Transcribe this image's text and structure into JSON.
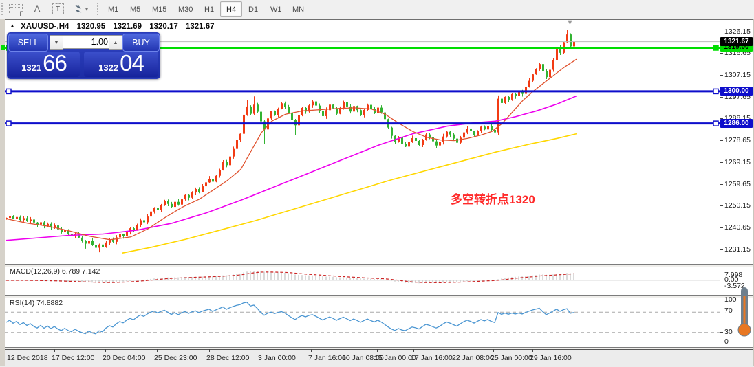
{
  "toolbar": {
    "icons": [
      {
        "name": "grid-f-icon",
        "glyph": "F"
      },
      {
        "name": "text-a-icon",
        "glyph": "A"
      },
      {
        "name": "text-box-icon",
        "glyph": "T"
      },
      {
        "name": "arrows-dropdown-icon",
        "glyph": "▾"
      }
    ],
    "timeframes": [
      "M1",
      "M5",
      "M15",
      "M30",
      "H1",
      "H4",
      "D1",
      "W1",
      "MN"
    ],
    "active_timeframe": "H4"
  },
  "chart": {
    "collapse_marker": "▲",
    "shift_marker": "▼",
    "symbol_title": "XAUUSD-,H4",
    "ohlc": {
      "open": "1320.95",
      "high": "1321.69",
      "low": "1320.17",
      "close": "1321.67"
    },
    "trade_panel": {
      "sell_label": "SELL",
      "buy_label": "BUY",
      "volume": "1.00",
      "down_glyph": "▼",
      "up_glyph": "▲",
      "sell_price_small": "1321",
      "sell_price_big": "66",
      "buy_price_small": "1322",
      "buy_price_big": "04"
    },
    "annotation": {
      "text": "多空转折点1320",
      "color": "#ff2a2a"
    },
    "current_price": {
      "value": "1321.67",
      "badge_bg": "#000000",
      "line_color": "#bcbcbc"
    },
    "hlines": [
      {
        "price": 1319.0,
        "label": "1319.00",
        "color": "#00dd00",
        "text_color": "#000000"
      },
      {
        "price": 1300.0,
        "label": "1300.00",
        "color": "#0e0ecb",
        "text_color": "#ffffff"
      },
      {
        "price": 1286.0,
        "label": "1286.00",
        "color": "#0e0ecb",
        "text_color": "#ffffff"
      }
    ],
    "price_ticks": [
      "1326.15",
      "1316.65",
      "1307.15",
      "1297.65",
      "1288.15",
      "1278.65",
      "1269.15",
      "1259.65",
      "1250.15",
      "1240.65",
      "1231.15"
    ],
    "time_labels": [
      "12 Dec 2018",
      "17 Dec 12:00",
      "20 Dec 04:00",
      "25 Dec 23:00",
      "28 Dec 12:00",
      "3 Jan 00:00",
      "7 Jan 16:00",
      "10 Jan 08:00",
      "15 Jan 00:00",
      "17 Jan 16:00",
      "22 Jan 08:00",
      "25 Jan 00:00",
      "29 Jan 16:00"
    ]
  },
  "macd_pane": {
    "label": "MACD(12,26,9) 6.789 7.142",
    "ticks": [
      "7.998",
      "0.00",
      "-3.572"
    ]
  },
  "rsi_pane": {
    "label": "RSI(14) 74.8882",
    "ticks": [
      "100",
      "70",
      "30",
      "0"
    ]
  },
  "chart_data": {
    "type": "candlestick",
    "symbol": "XAUUSD",
    "timeframe": "H4",
    "price_axis_range": [
      1231.15,
      1326.15
    ],
    "colors": {
      "bull": "#f23b14",
      "bear": "#32b332",
      "ma_fast": "#e0532f",
      "ma_mid": "#ee00ee",
      "ma_slow": "#ffd700",
      "macd_bar": "#c2c2c2",
      "macd_signal": "#cc2222",
      "rsi_line": "#4b96d2"
    },
    "closes": [
      1244.8,
      1245.6,
      1244.5,
      1245.2,
      1243.9,
      1244.7,
      1243.4,
      1244.1,
      1242.8,
      1241.9,
      1242.9,
      1241.3,
      1242.2,
      1240.6,
      1241.5,
      1239.8,
      1238.6,
      1239.6,
      1237.9,
      1236.8,
      1237.9,
      1236.2,
      1234.9,
      1233.6,
      1234.8,
      1232.9,
      1231.8,
      1233.2,
      1232.2,
      1234.1,
      1235.4,
      1234.4,
      1236.3,
      1237.8,
      1236.9,
      1238.8,
      1240.3,
      1239.4,
      1241.6,
      1243.8,
      1242.9,
      1245.4,
      1247.6,
      1249.3,
      1248.2,
      1250.4,
      1252.1,
      1250.9,
      1249.6,
      1251.8,
      1250.6,
      1252.9,
      1254.8,
      1253.6,
      1255.9,
      1257.4,
      1256.2,
      1258.6,
      1260.3,
      1261.9,
      1260.6,
      1263.2,
      1265.8,
      1269.4,
      1267.8,
      1271.6,
      1274.9,
      1278.8,
      1281.5,
      1289.8,
      1293.4,
      1290.2,
      1294.2,
      1291.1,
      1286.9,
      1283.4,
      1288.2,
      1291.3,
      1289.5,
      1292.4,
      1294.8,
      1293.2,
      1290.4,
      1287.6,
      1285.2,
      1289.6,
      1292.8,
      1291.2,
      1293.9,
      1295.6,
      1293.8,
      1291.6,
      1289.2,
      1291.8,
      1294.2,
      1292.6,
      1290.2,
      1292.8,
      1295.2,
      1293.4,
      1291.2,
      1293.6,
      1291.8,
      1289.6,
      1291.9,
      1294.1,
      1292.3,
      1290.6,
      1292.9,
      1290.8,
      1287.9,
      1284.2,
      1280.6,
      1277.8,
      1279.9,
      1277.2,
      1275.9,
      1277.8,
      1279.6,
      1278.4,
      1276.6,
      1278.9,
      1281.2,
      1280.1,
      1278.2,
      1276.4,
      1277.9,
      1280.3,
      1282.4,
      1281.2,
      1279.4,
      1277.6,
      1279.8,
      1282.1,
      1283.8,
      1282.6,
      1280.9,
      1282.8,
      1284.6,
      1283.4,
      1284.9,
      1283.2,
      1282.1,
      1296.8,
      1294.9,
      1297.6,
      1296.4,
      1298.8,
      1297.9,
      1299.8,
      1298.9,
      1301.8,
      1304.6,
      1307.4,
      1309.8,
      1311.9,
      1308.9,
      1306.2,
      1309.4,
      1313.6,
      1318.9,
      1316.8,
      1321.4,
      1324.8,
      1319.6,
      1321.67
    ],
    "first_open": 1244.2,
    "wick_overrides": {
      "23": [
        0.3,
        2.2
      ],
      "26": [
        0.3,
        2.6
      ],
      "27": [
        0.4,
        2.0
      ],
      "69": [
        7.2,
        0.4
      ],
      "70": [
        2.8,
        0.5
      ],
      "72": [
        3.6,
        0.5
      ],
      "74": [
        0.4,
        4.0
      ],
      "75": [
        0.6,
        6.2
      ],
      "84": [
        0.4,
        4.2
      ],
      "143": [
        1.4,
        1.2
      ],
      "156": [
        0.5,
        3.0
      ],
      "163": [
        1.9,
        0.4
      ],
      "165": [
        0.8,
        0.6
      ]
    },
    "ma_fast_points": [
      [
        8,
        1244.5
      ],
      [
        40,
        1242.5
      ],
      [
        70,
        1241.2
      ],
      [
        100,
        1239.2
      ],
      [
        130,
        1236.8
      ],
      [
        160,
        1235.3
      ],
      [
        190,
        1236.5
      ],
      [
        215,
        1240
      ],
      [
        240,
        1245
      ],
      [
        265,
        1249.5
      ],
      [
        290,
        1253
      ],
      [
        310,
        1257
      ],
      [
        330,
        1261
      ],
      [
        350,
        1266
      ],
      [
        365,
        1274
      ],
      [
        380,
        1282
      ],
      [
        395,
        1287
      ],
      [
        415,
        1290
      ],
      [
        440,
        1291.5
      ],
      [
        465,
        1292
      ],
      [
        490,
        1292.5
      ],
      [
        515,
        1292.8
      ],
      [
        540,
        1292.3
      ],
      [
        560,
        1290
      ],
      [
        580,
        1286
      ],
      [
        600,
        1282.5
      ],
      [
        620,
        1280
      ],
      [
        640,
        1278.8
      ],
      [
        660,
        1278.5
      ],
      [
        680,
        1279.5
      ],
      [
        700,
        1281
      ],
      [
        715,
        1282.5
      ],
      [
        730,
        1286
      ],
      [
        745,
        1291
      ],
      [
        760,
        1296
      ],
      [
        775,
        1300
      ],
      [
        790,
        1303.5
      ],
      [
        805,
        1307
      ],
      [
        820,
        1310.5
      ],
      [
        838,
        1314
      ]
    ],
    "ma_mid_points": [
      [
        8,
        1235
      ],
      [
        50,
        1236
      ],
      [
        100,
        1237.2
      ],
      [
        150,
        1237.8
      ],
      [
        200,
        1239.5
      ],
      [
        250,
        1242.5
      ],
      [
        300,
        1247
      ],
      [
        350,
        1252.5
      ],
      [
        400,
        1258.5
      ],
      [
        450,
        1264.5
      ],
      [
        500,
        1270.5
      ],
      [
        550,
        1276.5
      ],
      [
        600,
        1281.5
      ],
      [
        650,
        1284.8
      ],
      [
        690,
        1286.3
      ],
      [
        720,
        1287
      ],
      [
        750,
        1289
      ],
      [
        780,
        1291.5
      ],
      [
        810,
        1294.5
      ],
      [
        838,
        1298
      ]
    ],
    "ma_slow_points": [
      [
        178,
        1229.5
      ],
      [
        220,
        1232
      ],
      [
        270,
        1235.5
      ],
      [
        320,
        1239.5
      ],
      [
        370,
        1243.5
      ],
      [
        420,
        1248
      ],
      [
        470,
        1252.5
      ],
      [
        520,
        1257
      ],
      [
        570,
        1261.5
      ],
      [
        620,
        1265.5
      ],
      [
        670,
        1269.5
      ],
      [
        720,
        1273.5
      ],
      [
        770,
        1277
      ],
      [
        810,
        1279.5
      ],
      [
        838,
        1281.5
      ]
    ],
    "indicators": {
      "macd": {
        "params": [
          12,
          26,
          9
        ],
        "current": [
          6.789,
          7.142
        ]
      },
      "rsi": {
        "params": [
          14
        ],
        "current": 74.8882,
        "levels": [
          70,
          30
        ]
      }
    }
  }
}
